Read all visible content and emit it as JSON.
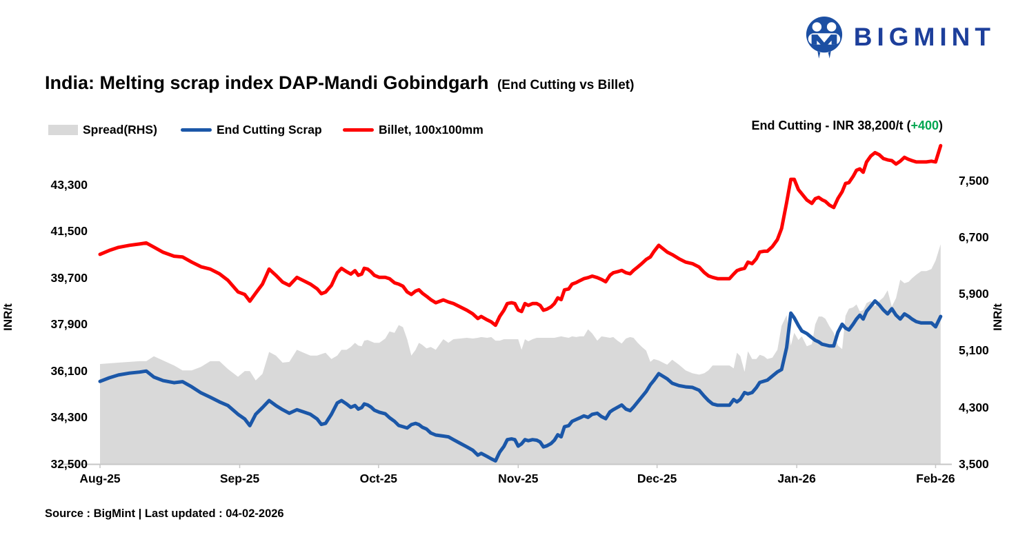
{
  "logo": {
    "wordmark": "BIGMINT",
    "brand_color": "#1d3f9b",
    "icon": "bigmint-m-circle-icon"
  },
  "title": {
    "main": "India: Melting scrap index DAP-Mandi Gobindgarh",
    "sub": "(End Cutting vs Billet)"
  },
  "legend": {
    "items": [
      {
        "label": "Spread(RHS)",
        "swatch": "area",
        "color": "#d9d9d9"
      },
      {
        "label": "End Cutting Scrap",
        "swatch": "line",
        "color": "#1b57a8"
      },
      {
        "label": "Billet, 100x100mm",
        "swatch": "line",
        "color": "#fe0000"
      }
    ]
  },
  "annotation": {
    "prefix": "End Cutting - INR 38,200/t (",
    "highlight": "+400",
    "suffix": ")",
    "highlight_color": "#00a651"
  },
  "source": "Source : BigMint | Last updated : 04-02-2026",
  "chart_data": {
    "type": "line",
    "title": "India: Melting scrap index DAP-Mandi Gobindgarh (End Cutting vs Billet)",
    "x_domain": [
      "Aug-25",
      "Feb-26"
    ],
    "x_axis": {
      "labels": [
        "Aug-25",
        "Sep-25",
        "Oct-25",
        "Nov-25",
        "Dec-25",
        "Jan-26",
        "Feb-26"
      ],
      "label_pct": [
        0,
        16.6,
        33.1,
        49.7,
        66.2,
        82.8,
        99.3
      ]
    },
    "left_axis": {
      "title": "INR/t",
      "tick_labels": [
        "43,300",
        "41,500",
        "39,700",
        "37,900",
        "36,100",
        "34,300",
        "32,500"
      ],
      "tick_values": [
        43300,
        41500,
        39700,
        37900,
        36100,
        34300,
        32500
      ],
      "min": 32500,
      "max": 45100,
      "grid": false
    },
    "right_axis": {
      "title": "INR/t",
      "tick_labels": [
        "7,500",
        "6,700",
        "5,900",
        "5,100",
        "4,300",
        "3,500"
      ],
      "tick_values": [
        7500,
        6700,
        5900,
        5100,
        4300,
        3500
      ],
      "min": 3500,
      "max": 8100,
      "grid": false
    },
    "series": [
      {
        "name": "Billet, 100x100mm",
        "type": "line",
        "axis": "left",
        "color": "#fe0000"
      },
      {
        "name": "End Cutting Scrap",
        "type": "line",
        "axis": "left",
        "color": "#1b57a8",
        "last_value": 38200,
        "last_change": 400
      },
      {
        "name": "Spread(RHS)",
        "type": "area",
        "axis": "right",
        "color": "#d9d9d9",
        "note": "Spread = Billet minus End Cutting Scrap, plotted on right axis"
      }
    ],
    "points_format": [
      "x_percent_along_axis",
      "billet_inr_t",
      "end_cutting_scrap_inr_t"
    ],
    "points": [
      [
        0.0,
        40600,
        35690
      ],
      [
        1.1,
        40750,
        35830
      ],
      [
        2.2,
        40870,
        35940
      ],
      [
        3.5,
        40950,
        36010
      ],
      [
        4.7,
        41000,
        36050
      ],
      [
        5.5,
        41040,
        36090
      ],
      [
        6.4,
        40880,
        35860
      ],
      [
        7.5,
        40680,
        35720
      ],
      [
        8.8,
        40530,
        35640
      ],
      [
        9.8,
        40500,
        35680
      ],
      [
        10.9,
        40300,
        35480
      ],
      [
        12.0,
        40120,
        35250
      ],
      [
        13.1,
        40030,
        35080
      ],
      [
        14.2,
        39850,
        34900
      ],
      [
        15.2,
        39600,
        34760
      ],
      [
        16.4,
        39150,
        34420
      ],
      [
        17.2,
        39050,
        34240
      ],
      [
        17.8,
        38790,
        33980
      ],
      [
        18.5,
        39100,
        34420
      ],
      [
        19.3,
        39450,
        34680
      ],
      [
        20.1,
        40030,
        34950
      ],
      [
        20.9,
        39790,
        34760
      ],
      [
        21.7,
        39530,
        34600
      ],
      [
        22.5,
        39400,
        34460
      ],
      [
        23.4,
        39710,
        34600
      ],
      [
        24.2,
        39580,
        34510
      ],
      [
        25.0,
        39450,
        34420
      ],
      [
        25.8,
        39270,
        34240
      ],
      [
        26.3,
        39080,
        34030
      ],
      [
        26.8,
        39140,
        34070
      ],
      [
        27.5,
        39400,
        34420
      ],
      [
        28.2,
        39890,
        34860
      ],
      [
        28.7,
        40060,
        34950
      ],
      [
        29.3,
        39930,
        34820
      ],
      [
        29.8,
        39840,
        34690
      ],
      [
        30.3,
        39970,
        34760
      ],
      [
        30.7,
        39790,
        34620
      ],
      [
        31.1,
        39840,
        34680
      ],
      [
        31.4,
        40060,
        34820
      ],
      [
        31.8,
        40030,
        34780
      ],
      [
        32.2,
        39930,
        34700
      ],
      [
        32.6,
        39790,
        34580
      ],
      [
        33.2,
        39710,
        34500
      ],
      [
        33.9,
        39710,
        34440
      ],
      [
        34.4,
        39660,
        34290
      ],
      [
        35.0,
        39500,
        34150
      ],
      [
        35.5,
        39450,
        33990
      ],
      [
        36.0,
        39370,
        33940
      ],
      [
        36.5,
        39150,
        33890
      ],
      [
        37.0,
        39050,
        34020
      ],
      [
        37.5,
        39180,
        34070
      ],
      [
        37.9,
        39230,
        34020
      ],
      [
        38.3,
        39100,
        33920
      ],
      [
        38.8,
        38980,
        33850
      ],
      [
        39.3,
        38850,
        33700
      ],
      [
        39.9,
        38730,
        33620
      ],
      [
        40.8,
        38840,
        33580
      ],
      [
        41.4,
        38760,
        33550
      ],
      [
        42.0,
        38700,
        33440
      ],
      [
        42.8,
        38570,
        33300
      ],
      [
        43.6,
        38440,
        33160
      ],
      [
        44.3,
        38300,
        33030
      ],
      [
        44.9,
        38120,
        32840
      ],
      [
        45.3,
        38200,
        32910
      ],
      [
        46.0,
        38070,
        32790
      ],
      [
        46.5,
        37990,
        32700
      ],
      [
        47.0,
        37860,
        32620
      ],
      [
        47.5,
        38200,
        32960
      ],
      [
        48.0,
        38440,
        33180
      ],
      [
        48.4,
        38700,
        33440
      ],
      [
        48.9,
        38730,
        33470
      ],
      [
        49.3,
        38700,
        33440
      ],
      [
        49.7,
        38450,
        33190
      ],
      [
        50.1,
        38390,
        33280
      ],
      [
        50.5,
        38700,
        33440
      ],
      [
        50.9,
        38630,
        33400
      ],
      [
        51.4,
        38700,
        33440
      ],
      [
        51.9,
        38700,
        33420
      ],
      [
        52.3,
        38630,
        33350
      ],
      [
        52.7,
        38440,
        33160
      ],
      [
        53.1,
        38480,
        33200
      ],
      [
        53.6,
        38570,
        33290
      ],
      [
        54.0,
        38700,
        33420
      ],
      [
        54.4,
        38920,
        33630
      ],
      [
        54.8,
        38850,
        33550
      ],
      [
        55.2,
        39230,
        33940
      ],
      [
        55.7,
        39260,
        33980
      ],
      [
        56.1,
        39450,
        34150
      ],
      [
        56.6,
        39510,
        34220
      ],
      [
        57.0,
        39580,
        34280
      ],
      [
        57.5,
        39660,
        34360
      ],
      [
        58.0,
        39700,
        34300
      ],
      [
        58.5,
        39760,
        34420
      ],
      [
        59.1,
        39700,
        34460
      ],
      [
        59.6,
        39630,
        34330
      ],
      [
        60.1,
        39540,
        34250
      ],
      [
        60.6,
        39790,
        34510
      ],
      [
        61.0,
        39890,
        34600
      ],
      [
        61.5,
        39930,
        34690
      ],
      [
        62.0,
        39980,
        34780
      ],
      [
        62.5,
        39890,
        34620
      ],
      [
        63.0,
        39850,
        34560
      ],
      [
        63.4,
        39980,
        34700
      ],
      [
        63.9,
        40110,
        34900
      ],
      [
        64.4,
        40250,
        35100
      ],
      [
        64.9,
        40400,
        35300
      ],
      [
        65.4,
        40500,
        35560
      ],
      [
        65.8,
        40700,
        35720
      ],
      [
        66.4,
        40950,
        35990
      ],
      [
        66.9,
        40820,
        35890
      ],
      [
        67.4,
        40690,
        35790
      ],
      [
        68.0,
        40590,
        35620
      ],
      [
        68.8,
        40430,
        35530
      ],
      [
        69.6,
        40300,
        35480
      ],
      [
        70.4,
        40240,
        35460
      ],
      [
        71.2,
        40110,
        35350
      ],
      [
        71.8,
        39900,
        35120
      ],
      [
        72.3,
        39770,
        34950
      ],
      [
        72.8,
        39710,
        34820
      ],
      [
        73.4,
        39660,
        34770
      ],
      [
        74.1,
        39660,
        34770
      ],
      [
        74.8,
        39660,
        34770
      ],
      [
        75.3,
        39840,
        34990
      ],
      [
        75.7,
        39970,
        34900
      ],
      [
        76.1,
        40020,
        35000
      ],
      [
        76.6,
        40060,
        35260
      ],
      [
        77.0,
        40300,
        35210
      ],
      [
        77.5,
        40240,
        35260
      ],
      [
        78.0,
        40430,
        35450
      ],
      [
        78.4,
        40690,
        35650
      ],
      [
        78.9,
        40720,
        35700
      ],
      [
        79.3,
        40720,
        35740
      ],
      [
        79.9,
        40900,
        35900
      ],
      [
        80.5,
        41170,
        36060
      ],
      [
        81.0,
        41600,
        36150
      ],
      [
        81.6,
        42600,
        37000
      ],
      [
        82.1,
        43500,
        38330
      ],
      [
        82.5,
        43500,
        38150
      ],
      [
        83.0,
        43100,
        37850
      ],
      [
        83.4,
        42940,
        37640
      ],
      [
        84.0,
        42700,
        37540
      ],
      [
        84.6,
        42570,
        37380
      ],
      [
        85.0,
        42750,
        37280
      ],
      [
        85.4,
        42800,
        37220
      ],
      [
        85.8,
        42710,
        37130
      ],
      [
        86.2,
        42650,
        37100
      ],
      [
        86.7,
        42500,
        37060
      ],
      [
        87.2,
        42410,
        37060
      ],
      [
        87.7,
        42760,
        37590
      ],
      [
        88.2,
        43020,
        37900
      ],
      [
        88.6,
        43340,
        37750
      ],
      [
        89.0,
        43370,
        37680
      ],
      [
        89.5,
        43610,
        37900
      ],
      [
        89.9,
        43850,
        38100
      ],
      [
        90.3,
        43900,
        38250
      ],
      [
        90.7,
        43770,
        38100
      ],
      [
        91.1,
        44170,
        38400
      ],
      [
        91.6,
        44400,
        38600
      ],
      [
        92.1,
        44530,
        38800
      ],
      [
        92.6,
        44450,
        38650
      ],
      [
        93.1,
        44300,
        38450
      ],
      [
        93.6,
        44250,
        38300
      ],
      [
        94.1,
        44220,
        38500
      ],
      [
        94.6,
        44090,
        38250
      ],
      [
        95.1,
        44200,
        38100
      ],
      [
        95.6,
        44350,
        38300
      ],
      [
        96.1,
        44270,
        38200
      ],
      [
        96.5,
        44220,
        38100
      ],
      [
        97.0,
        44170,
        38000
      ],
      [
        97.6,
        44170,
        37950
      ],
      [
        98.2,
        44170,
        37950
      ],
      [
        98.8,
        44200,
        37950
      ],
      [
        99.3,
        44170,
        37800
      ],
      [
        99.9,
        44800,
        38200
      ]
    ]
  }
}
